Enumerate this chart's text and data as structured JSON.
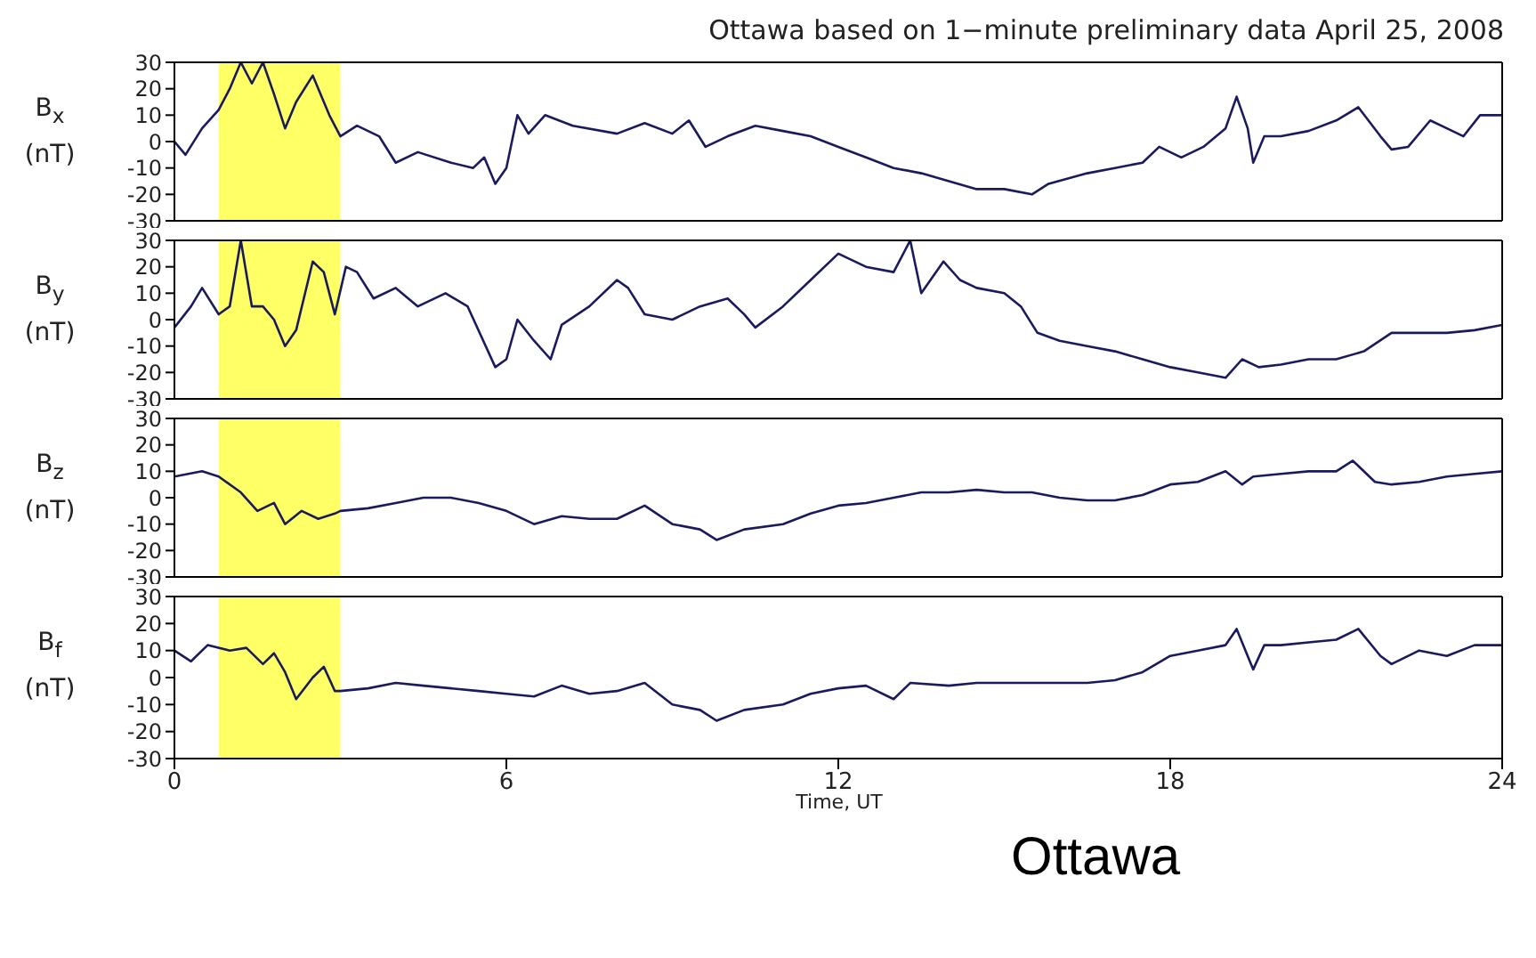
{
  "chart_data": [
    {
      "type": "line",
      "title": "Ottawa based on 1−minute preliminary data April 25, 2008",
      "ylabel": "B$_{x}$ (nT)",
      "xlim": [
        0,
        24
      ],
      "xticks": [
        0,
        6,
        12,
        18,
        24
      ],
      "ylim": [
        -30,
        30
      ],
      "yticks": [
        -30,
        -20,
        -10,
        0,
        10,
        20,
        30
      ],
      "tick_labels": "y",
      "bands": [
        {
          "axis": "x",
          "from": 0.8,
          "to": 3.0,
          "color": "#ffff66"
        }
      ],
      "series": [
        {
          "color": "#1a1a5e",
          "x": [
            0,
            0.2,
            0.5,
            0.8,
            1.0,
            1.2,
            1.4,
            1.6,
            1.8,
            2.0,
            2.2,
            2.5,
            2.8,
            3.0,
            3.3,
            3.7,
            4.0,
            4.4,
            5.0,
            5.4,
            5.6,
            5.8,
            6.0,
            6.2,
            6.4,
            6.7,
            7.2,
            8.0,
            8.5,
            9.0,
            9.3,
            9.6,
            10.0,
            10.5,
            11.0,
            11.5,
            12.0,
            12.5,
            13.0,
            13.5,
            14.0,
            14.5,
            15.0,
            15.5,
            15.8,
            16.5,
            17.0,
            17.5,
            17.8,
            18.2,
            18.6,
            19.0,
            19.2,
            19.4,
            19.5,
            19.7,
            20.0,
            20.5,
            21.0,
            21.4,
            21.8,
            22.0,
            22.3,
            22.7,
            23.0,
            23.3,
            23.6,
            24
          ],
          "values": [
            0,
            -5,
            5,
            12,
            20,
            30,
            22,
            30,
            18,
            5,
            15,
            25,
            10,
            2,
            6,
            2,
            -8,
            -4,
            -8,
            -10,
            -6,
            -16,
            -10,
            10,
            3,
            10,
            6,
            3,
            7,
            3,
            8,
            -2,
            2,
            6,
            4,
            2,
            -2,
            -6,
            -10,
            -12,
            -15,
            -18,
            -18,
            -20,
            -16,
            -12,
            -10,
            -8,
            -2,
            -6,
            -2,
            5,
            17,
            5,
            -8,
            2,
            2,
            4,
            8,
            13,
            2,
            -3,
            -2,
            8,
            5,
            2,
            10,
            10
          ]
        }
      ]
    },
    {
      "type": "line",
      "ylabel": "B$_{y}$ (nT)",
      "xlim": [
        0,
        24
      ],
      "xticks": [
        0,
        6,
        12,
        18,
        24
      ],
      "ylim": [
        -30,
        30
      ],
      "yticks": [
        -30,
        -20,
        -10,
        0,
        10,
        20,
        30
      ],
      "tick_labels": "y",
      "bands": [
        {
          "axis": "x",
          "from": 0.8,
          "to": 3.0,
          "color": "#ffff66"
        }
      ],
      "series": [
        {
          "color": "#1a1a5e",
          "x": [
            0,
            0.3,
            0.5,
            0.8,
            1.0,
            1.2,
            1.4,
            1.6,
            1.8,
            2.0,
            2.2,
            2.5,
            2.7,
            2.9,
            3.1,
            3.3,
            3.6,
            4.0,
            4.4,
            4.9,
            5.3,
            5.8,
            6.0,
            6.2,
            6.5,
            6.8,
            7.0,
            7.5,
            8.0,
            8.2,
            8.5,
            9.0,
            9.5,
            10.0,
            10.3,
            10.5,
            11.0,
            11.5,
            12.0,
            12.5,
            13.0,
            13.3,
            13.5,
            13.9,
            14.2,
            14.5,
            15.0,
            15.3,
            15.6,
            16.0,
            16.5,
            17.0,
            17.5,
            18.0,
            18.5,
            19.0,
            19.3,
            19.6,
            20.0,
            20.5,
            21.0,
            21.5,
            22.0,
            22.5,
            23.0,
            23.5,
            24
          ],
          "values": [
            -3,
            5,
            12,
            2,
            5,
            30,
            5,
            5,
            0,
            -10,
            -4,
            22,
            18,
            2,
            20,
            18,
            8,
            12,
            5,
            10,
            5,
            -18,
            -15,
            0,
            -8,
            -15,
            -2,
            5,
            15,
            12,
            2,
            0,
            5,
            8,
            2,
            -3,
            5,
            15,
            25,
            20,
            18,
            30,
            10,
            22,
            15,
            12,
            10,
            5,
            -5,
            -8,
            -10,
            -12,
            -15,
            -18,
            -20,
            -22,
            -15,
            -18,
            -17,
            -15,
            -15,
            -12,
            -5,
            -5,
            -5,
            -4,
            -2
          ]
        }
      ]
    },
    {
      "type": "line",
      "ylabel": "B$_{z}$ (nT)",
      "xlim": [
        0,
        24
      ],
      "xticks": [
        0,
        6,
        12,
        18,
        24
      ],
      "ylim": [
        -30,
        30
      ],
      "yticks": [
        -30,
        -20,
        -10,
        0,
        10,
        20,
        30
      ],
      "tick_labels": "y",
      "bands": [
        {
          "axis": "x",
          "from": 0.8,
          "to": 3.0,
          "color": "#ffff66"
        }
      ],
      "series": [
        {
          "color": "#1a1a5e",
          "x": [
            0,
            0.5,
            0.8,
            1.2,
            1.5,
            1.8,
            2.0,
            2.3,
            2.6,
            2.9,
            3.0,
            3.5,
            4.0,
            4.5,
            5.0,
            5.5,
            6.0,
            6.5,
            7.0,
            7.5,
            8.0,
            8.5,
            9.0,
            9.5,
            9.8,
            10.3,
            11.0,
            11.5,
            12.0,
            12.5,
            13.0,
            13.5,
            14.0,
            14.5,
            15.0,
            15.5,
            16.0,
            16.5,
            17.0,
            17.5,
            18.0,
            18.5,
            19.0,
            19.3,
            19.5,
            20.0,
            20.5,
            21.0,
            21.3,
            21.7,
            22.0,
            22.5,
            23.0,
            23.5,
            24
          ],
          "values": [
            8,
            10,
            8,
            2,
            -5,
            -2,
            -10,
            -5,
            -8,
            -6,
            -5,
            -4,
            -2,
            0,
            0,
            -2,
            -5,
            -10,
            -7,
            -8,
            -8,
            -3,
            -10,
            -12,
            -16,
            -12,
            -10,
            -6,
            -3,
            -2,
            0,
            2,
            2,
            3,
            2,
            2,
            0,
            -1,
            -1,
            1,
            5,
            6,
            10,
            5,
            8,
            9,
            10,
            10,
            14,
            6,
            5,
            6,
            8,
            9,
            10
          ]
        }
      ]
    },
    {
      "type": "line",
      "ylabel": "B$_{f}$ (nT)",
      "xlabel": "Time, UT",
      "annotations": [
        "Ottawa"
      ],
      "xlim": [
        0,
        24
      ],
      "xticks": [
        0,
        6,
        12,
        18,
        24
      ],
      "ylim": [
        -30,
        30
      ],
      "yticks": [
        -30,
        -20,
        -10,
        0,
        10,
        20,
        30
      ],
      "bands": [
        {
          "axis": "x",
          "from": 0.8,
          "to": 3.0,
          "color": "#ffff66"
        }
      ],
      "series": [
        {
          "color": "#1a1a5e",
          "x": [
            0,
            0.3,
            0.6,
            1.0,
            1.3,
            1.6,
            1.8,
            2.0,
            2.2,
            2.5,
            2.7,
            2.9,
            3.0,
            3.5,
            4.0,
            4.5,
            5.0,
            5.5,
            6.0,
            6.5,
            7.0,
            7.5,
            8.0,
            8.5,
            9.0,
            9.5,
            9.8,
            10.3,
            11.0,
            11.5,
            12.0,
            12.5,
            13.0,
            13.3,
            14.0,
            14.5,
            15.0,
            15.5,
            16.0,
            16.5,
            17.0,
            17.5,
            18.0,
            18.5,
            19.0,
            19.2,
            19.5,
            19.7,
            20.0,
            20.5,
            21.0,
            21.4,
            21.8,
            22.0,
            22.5,
            23.0,
            23.5,
            24
          ],
          "values": [
            10,
            6,
            12,
            10,
            11,
            5,
            9,
            2,
            -8,
            0,
            4,
            -5,
            -5,
            -4,
            -2,
            -3,
            -4,
            -5,
            -6,
            -7,
            -3,
            -6,
            -5,
            -2,
            -10,
            -12,
            -16,
            -12,
            -10,
            -6,
            -4,
            -3,
            -8,
            -2,
            -3,
            -2,
            -2,
            -2,
            -2,
            -2,
            -1,
            2,
            8,
            10,
            12,
            18,
            3,
            12,
            12,
            13,
            14,
            18,
            8,
            5,
            10,
            8,
            12,
            12
          ]
        }
      ]
    }
  ]
}
